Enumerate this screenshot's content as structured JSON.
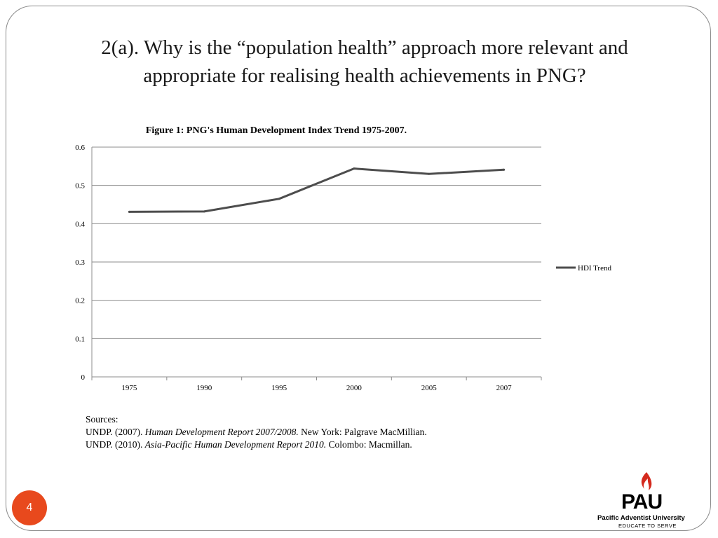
{
  "slide": {
    "title": "2(a). Why is the “population health” approach more relevant and appropriate for realising health achievements in PNG?",
    "page_number": "4"
  },
  "chart_data": {
    "type": "line",
    "title": "Figure 1: PNG's Human Development Index Trend 1975-2007.",
    "xlabel": "",
    "ylabel": "",
    "categories": [
      "1975",
      "1990",
      "1995",
      "2000",
      "2005",
      "2007"
    ],
    "series": [
      {
        "name": "HDI Trend",
        "values": [
          0.431,
          0.432,
          0.465,
          0.544,
          0.53,
          0.541
        ],
        "color": "#4d4d4d"
      }
    ],
    "ylim": [
      0,
      0.6
    ],
    "yticks": [
      "0",
      "0.1",
      "0.2",
      "0.3",
      "0.4",
      "0.5",
      "0.6"
    ],
    "grid": true,
    "legend_position": "right"
  },
  "sources": {
    "heading": "Sources:",
    "items": [
      {
        "prefix": "UNDP. (2007).  ",
        "title": "Human Development Report 2007/2008.",
        "suffix": " New York: Palgrave MacMillian."
      },
      {
        "prefix": "UNDP. (2010). ",
        "title": "Asia-Pacific Human Development Report 2010.",
        "suffix": " Colombo: Macmillan."
      }
    ]
  },
  "logo": {
    "letters": "PAU",
    "name": "Pacific Adventist University",
    "tagline": "EDUCATE TO SERVE"
  },
  "colors": {
    "badge": "#e8491d",
    "logo_flame": "#d42a1e",
    "line": "#4d4d4d",
    "grid": "#8c8c8c"
  }
}
